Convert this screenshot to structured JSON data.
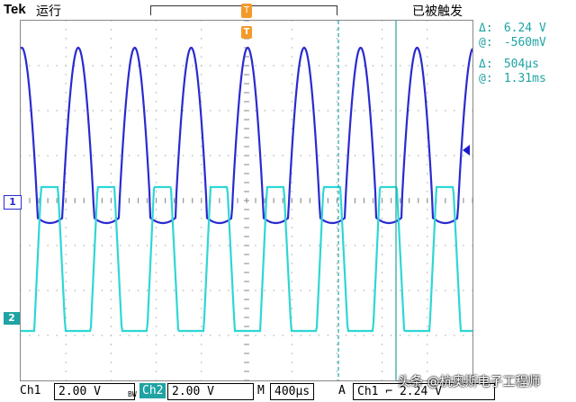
{
  "header": {
    "brand": "Tek",
    "run_state": "运行",
    "trigger_status": "已被触发"
  },
  "markers": {
    "trigger_top": "T",
    "trigger_pos": "T",
    "ch1": "1",
    "ch2": "2"
  },
  "measurements": [
    {
      "symbol": "Δ:",
      "value": "6.24 V"
    },
    {
      "symbol": "@:",
      "value": "-560mV"
    },
    {
      "symbol": "Δ:",
      "value": "504µs"
    },
    {
      "symbol": "@:",
      "value": "1.31ms"
    }
  ],
  "footer": {
    "ch1_label": "Ch1",
    "ch1_scale": "2.00 V",
    "bw": "BW",
    "ch2_label": "Ch2",
    "ch2_scale": "2.00 V",
    "m_label": "M",
    "timebase": "400µs",
    "a_label": "A",
    "trig_source": "Ch1",
    "trig_slope": "⌐",
    "trig_level": "2.24 V"
  },
  "watermark": "头条 @杭奥斯电子工程师",
  "colors": {
    "ch1": "#2a2ad0",
    "ch2": "#2fd6d6",
    "cursor": "#1fa3a3",
    "trigger": "#f39a2b"
  },
  "waveforms": {
    "ch1": {
      "low": -0.2,
      "high": 3.6,
      "period_div": 1.25
    },
    "ch2": {
      "low": -3.0,
      "high": 0.2,
      "period_div": 1.25
    }
  }
}
